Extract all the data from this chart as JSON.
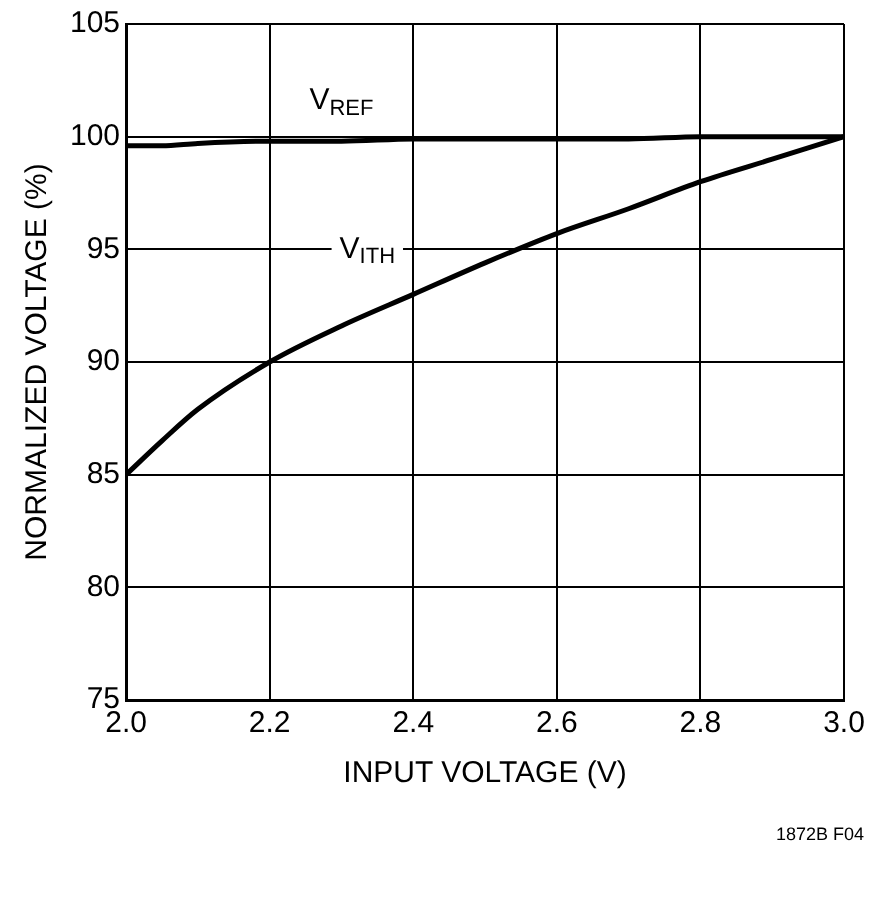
{
  "chart_data": {
    "type": "line",
    "xlabel": "INPUT VOLTAGE (V)",
    "ylabel": "NORMALIZED VOLTAGE (%)",
    "x": [
      2.0,
      2.05,
      2.1,
      2.2,
      2.3,
      2.4,
      2.5,
      2.6,
      2.7,
      2.8,
      2.9,
      3.0
    ],
    "series": [
      {
        "name": "V$_{REF}$",
        "color": "#000000",
        "values": [
          99.6,
          99.6,
          99.7,
          99.8,
          99.8,
          99.9,
          99.9,
          99.9,
          99.9,
          100,
          100,
          100
        ]
      },
      {
        "name": "V$_{ITH}$",
        "color": "#000000",
        "values": [
          85,
          86.5,
          87.9,
          90,
          91.6,
          93,
          94.4,
          95.7,
          96.8,
          98,
          99,
          100
        ]
      }
    ],
    "xlim": [
      2.0,
      3.0
    ],
    "xticks": [
      {
        "value": 2.0,
        "label": "2.0"
      },
      {
        "value": 2.2,
        "label": "2.2"
      },
      {
        "value": 2.4,
        "label": "2.4"
      },
      {
        "value": 2.6,
        "label": "2.6"
      },
      {
        "value": 2.8,
        "label": "2.8"
      },
      {
        "value": 3.0,
        "label": "3.0"
      }
    ],
    "ylim": [
      75,
      105
    ],
    "yticks": [
      75,
      80,
      85,
      90,
      95,
      100,
      105
    ],
    "grid": true,
    "legend": false,
    "marker": "none",
    "line_style": "solid",
    "annotations": [
      "1872B F04"
    ]
  }
}
